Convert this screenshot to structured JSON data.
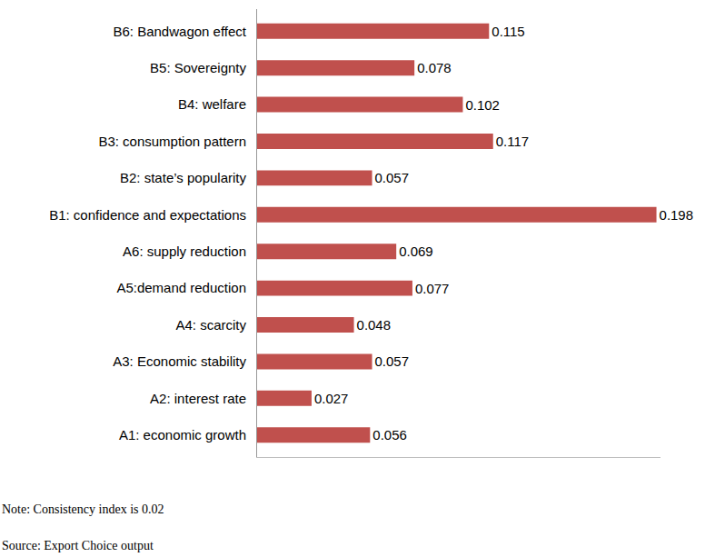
{
  "chart_data": {
    "type": "bar",
    "orientation": "horizontal",
    "categories": [
      "A1: economic growth",
      "A2: interest rate",
      "A3: Economic stability",
      "A4: scarcity",
      "A5:demand reduction",
      "A6: supply reduction",
      "B1: confidence and expectations",
      "B2: state’s popularity",
      "B3: consumption pattern",
      "B4: welfare",
      "B5: Sovereignty",
      "B6: Bandwagon effect"
    ],
    "values": [
      0.056,
      0.027,
      0.057,
      0.048,
      0.077,
      0.069,
      0.198,
      0.057,
      0.117,
      0.102,
      0.078,
      0.115
    ],
    "color": "#c0504d",
    "xlim": [
      0,
      0.2
    ],
    "xticks": [],
    "data_labels": true,
    "tick_labels": "y",
    "grid": false,
    "annotations": [
      "Note: Consistency index is 0.02",
      "Source: Export Choice output"
    ]
  }
}
